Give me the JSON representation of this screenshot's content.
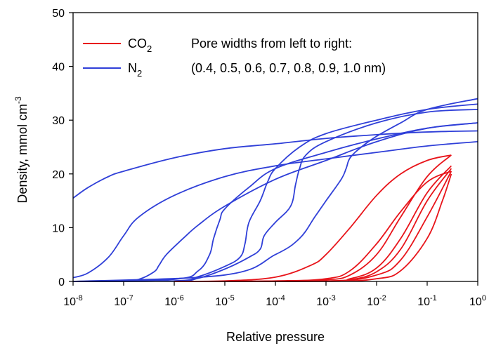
{
  "chart_data": {
    "type": "line",
    "xlabel": "Relative pressure",
    "ylabel": "Density, mmol cm-3",
    "ylabel_parts": {
      "main": "Density, mmol cm",
      "sup": "-3"
    },
    "xscale": "log",
    "xlim": [
      1e-08,
      1
    ],
    "ylim": [
      0,
      50
    ],
    "grid": false,
    "legend_position": "top-left",
    "x_ticks": [
      {
        "base": "10",
        "exp": "-8",
        "value": 1e-08
      },
      {
        "base": "10",
        "exp": "-7",
        "value": 1e-07
      },
      {
        "base": "10",
        "exp": "-6",
        "value": 1e-06
      },
      {
        "base": "10",
        "exp": "-5",
        "value": 1e-05
      },
      {
        "base": "10",
        "exp": "-4",
        "value": 0.0001
      },
      {
        "base": "10",
        "exp": "-3",
        "value": 0.001
      },
      {
        "base": "10",
        "exp": "-2",
        "value": 0.01
      },
      {
        "base": "10",
        "exp": "-1",
        "value": 0.1
      },
      {
        "base": "10",
        "exp": "0",
        "value": 1
      }
    ],
    "y_ticks": [
      {
        "label": "0",
        "value": 0
      },
      {
        "label": "10",
        "value": 10
      },
      {
        "label": "20",
        "value": 20
      },
      {
        "label": "30",
        "value": 30
      },
      {
        "label": "40",
        "value": 40
      },
      {
        "label": "50",
        "value": 50
      }
    ],
    "annotation_lines": [
      "Pore widths from left to right:",
      "(0.4, 0.5, 0.6, 0.7, 0.8, 0.9, 1.0 nm)"
    ],
    "legend": [
      {
        "label": "CO",
        "sub": "2",
        "color": "#e8141a"
      },
      {
        "label": "N",
        "sub": "2",
        "color": "#2f3fd8"
      }
    ],
    "series_groups": [
      {
        "gas": "N2",
        "color": "#2f3fd8",
        "curves": [
          {
            "pore": "0.4 nm",
            "points": [
              [
                1e-08,
                15.5
              ],
              [
                2e-08,
                17.5
              ],
              [
                5e-08,
                19.5
              ],
              [
                1e-07,
                20.5
              ],
              [
                1e-06,
                23
              ],
              [
                1e-05,
                24.7
              ],
              [
                0.0001,
                25.6
              ],
              [
                0.001,
                26.6
              ],
              [
                0.01,
                27.3
              ],
              [
                0.1,
                27.8
              ],
              [
                1,
                28
              ]
            ]
          },
          {
            "pore": "0.5 nm",
            "points": [
              [
                1e-08,
                0.7
              ],
              [
                2e-08,
                1.6
              ],
              [
                5e-08,
                4.5
              ],
              [
                1e-07,
                8.5
              ],
              [
                2e-07,
                12
              ],
              [
                1e-06,
                16
              ],
              [
                1e-05,
                19.5
              ],
              [
                0.0001,
                21.5
              ],
              [
                0.001,
                22.8
              ],
              [
                0.01,
                24
              ],
              [
                0.1,
                25.2
              ],
              [
                1,
                26
              ]
            ]
          },
          {
            "pore": "0.6 nm",
            "points": [
              [
                1e-08,
                0
              ],
              [
                1e-07,
                0.1
              ],
              [
                2e-07,
                0.4
              ],
              [
                4e-07,
                1.8
              ],
              [
                5e-07,
                3
              ],
              [
                7e-07,
                5
              ],
              [
                1.5e-06,
                8
              ],
              [
                3e-06,
                10.5
              ],
              [
                1e-05,
                14
              ],
              [
                0.0001,
                19
              ],
              [
                0.001,
                22.5
              ],
              [
                0.01,
                26
              ],
              [
                0.1,
                28.5
              ],
              [
                1,
                29.5
              ]
            ]
          },
          {
            "pore": "0.7 nm",
            "points": [
              [
                1e-08,
                0
              ],
              [
                1e-06,
                0.4
              ],
              [
                3e-06,
                2
              ],
              [
                5e-06,
                5
              ],
              [
                6e-06,
                8
              ],
              [
                8e-06,
                11.5
              ],
              [
                1e-05,
                13.5
              ],
              [
                3e-05,
                17.5
              ],
              [
                0.0001,
                21
              ],
              [
                0.001,
                24
              ],
              [
                0.01,
                26.5
              ],
              [
                0.1,
                28.5
              ],
              [
                1,
                29.5
              ]
            ]
          },
          {
            "pore": "0.8 nm",
            "points": [
              [
                1e-08,
                0
              ],
              [
                1e-06,
                0.1
              ],
              [
                3e-06,
                0.9
              ],
              [
                1e-05,
                2.8
              ],
              [
                2e-05,
                4.5
              ],
              [
                2.5e-05,
                7
              ],
              [
                3e-05,
                11
              ],
              [
                5e-05,
                15
              ],
              [
                7e-05,
                18.5
              ],
              [
                0.0001,
                21
              ],
              [
                0.0003,
                25
              ],
              [
                0.001,
                27.5
              ],
              [
                0.01,
                30
              ],
              [
                0.1,
                32
              ],
              [
                1,
                33
              ]
            ]
          },
          {
            "pore": "0.9 nm",
            "points": [
              [
                1e-08,
                0
              ],
              [
                1e-06,
                0.1
              ],
              [
                3e-06,
                0.6
              ],
              [
                1e-05,
                2.3
              ],
              [
                3e-05,
                4.5
              ],
              [
                5e-05,
                6
              ],
              [
                6e-05,
                8.5
              ],
              [
                0.0001,
                11
              ],
              [
                0.0002,
                14
              ],
              [
                0.00025,
                18
              ],
              [
                0.0003,
                21
              ],
              [
                0.0004,
                23.5
              ],
              [
                0.001,
                26
              ],
              [
                0.01,
                29.5
              ],
              [
                0.1,
                31.5
              ],
              [
                1,
                32
              ]
            ]
          },
          {
            "pore": "1.0 nm",
            "points": [
              [
                1e-08,
                0
              ],
              [
                1e-05,
                1.2
              ],
              [
                0.0001,
                5
              ],
              [
                0.0003,
                8
              ],
              [
                0.0006,
                12
              ],
              [
                0.001,
                15
              ],
              [
                0.002,
                19
              ],
              [
                0.0025,
                21
              ],
              [
                0.003,
                23
              ],
              [
                0.005,
                25
              ],
              [
                0.01,
                27
              ],
              [
                0.03,
                29.5
              ],
              [
                0.1,
                32
              ],
              [
                1,
                34
              ]
            ]
          }
        ]
      },
      {
        "gas": "CO2",
        "color": "#e8141a",
        "curves": [
          {
            "pore": "0.4 nm",
            "points": [
              [
                1e-06,
                0
              ],
              [
                1e-05,
                0.1
              ],
              [
                0.0001,
                0.8
              ],
              [
                0.0005,
                3
              ],
              [
                0.001,
                5
              ],
              [
                0.003,
                10
              ],
              [
                0.01,
                16
              ],
              [
                0.03,
                20
              ],
              [
                0.1,
                22.5
              ],
              [
                0.3,
                23.5
              ]
            ]
          },
          {
            "pore": "0.5 nm",
            "points": [
              [
                1e-06,
                0
              ],
              [
                0.0001,
                0.1
              ],
              [
                0.001,
                0.5
              ],
              [
                0.003,
                2
              ],
              [
                0.01,
                7
              ],
              [
                0.03,
                13
              ],
              [
                0.1,
                18.5
              ],
              [
                0.3,
                20.5
              ]
            ]
          },
          {
            "pore": "0.6 nm",
            "points": [
              [
                1e-06,
                0
              ],
              [
                0.0001,
                0.05
              ],
              [
                0.001,
                0.3
              ],
              [
                0.003,
                1.2
              ],
              [
                0.01,
                5
              ],
              [
                0.03,
                12
              ],
              [
                0.1,
                19.5
              ],
              [
                0.3,
                23.5
              ]
            ]
          },
          {
            "pore": "0.7 nm",
            "points": [
              [
                1e-06,
                0
              ],
              [
                0.001,
                0.1
              ],
              [
                0.003,
                0.5
              ],
              [
                0.01,
                2.5
              ],
              [
                0.03,
                8
              ],
              [
                0.1,
                16.5
              ],
              [
                0.3,
                21.5
              ]
            ]
          },
          {
            "pore": "0.8 nm",
            "points": [
              [
                1e-06,
                0
              ],
              [
                0.001,
                0.05
              ],
              [
                0.003,
                0.3
              ],
              [
                0.01,
                1.8
              ],
              [
                0.03,
                6
              ],
              [
                0.1,
                15
              ],
              [
                0.3,
                21
              ]
            ]
          },
          {
            "pore": "0.9 nm",
            "points": [
              [
                1e-06,
                0
              ],
              [
                0.001,
                0.05
              ],
              [
                0.01,
                1.2
              ],
              [
                0.03,
                4
              ],
              [
                0.1,
                12
              ],
              [
                0.3,
                20.5
              ]
            ]
          },
          {
            "pore": "1.0 nm",
            "points": [
              [
                1e-06,
                0
              ],
              [
                0.001,
                0.02
              ],
              [
                0.01,
                0.5
              ],
              [
                0.03,
                2
              ],
              [
                0.1,
                8
              ],
              [
                0.2,
                15
              ],
              [
                0.3,
                20
              ]
            ]
          }
        ]
      }
    ]
  }
}
